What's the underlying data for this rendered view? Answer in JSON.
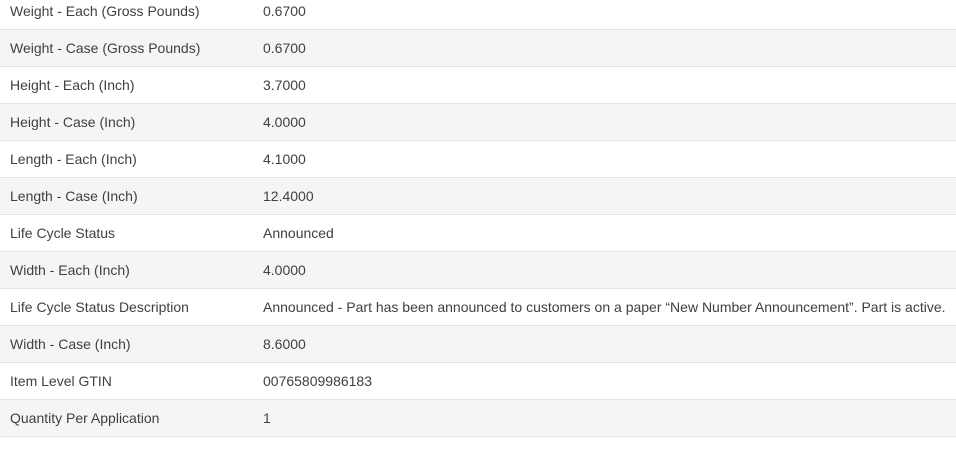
{
  "colors": {
    "background": "#ffffff",
    "row_stripe": "#f5f5f5",
    "row_border": "#e4e4e4",
    "text": "#404040"
  },
  "table": {
    "rows": [
      {
        "label": "Weight - Each (Gross Pounds)",
        "value": "0.6700"
      },
      {
        "label": "Weight - Case (Gross Pounds)",
        "value": "0.6700"
      },
      {
        "label": "Height - Each (Inch)",
        "value": "3.7000"
      },
      {
        "label": "Height - Case (Inch)",
        "value": "4.0000"
      },
      {
        "label": "Length - Each (Inch)",
        "value": "4.1000"
      },
      {
        "label": "Length - Case (Inch)",
        "value": "12.4000"
      },
      {
        "label": "Life Cycle Status",
        "value": "Announced"
      },
      {
        "label": "Width - Each (Inch)",
        "value": "4.0000"
      },
      {
        "label": "Life Cycle Status Description",
        "value": "Announced - Part has been announced to customers on a paper “New Number Announcement”. Part is active."
      },
      {
        "label": "Width - Case (Inch)",
        "value": "8.6000"
      },
      {
        "label": "Item Level GTIN",
        "value": "00765809986183"
      },
      {
        "label": "Quantity Per Application",
        "value": "1"
      }
    ]
  }
}
